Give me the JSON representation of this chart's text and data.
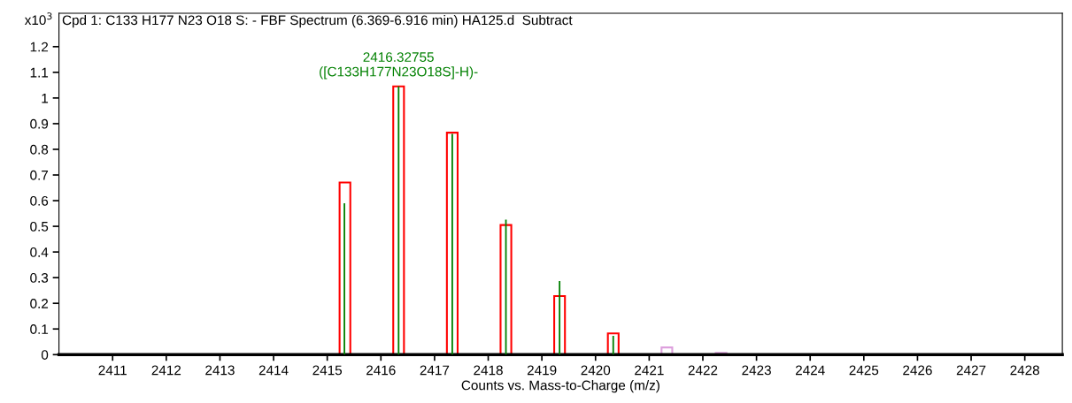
{
  "chart_data": {
    "type": "bar",
    "title": "Cpd 1: C133 H177 N23 O18 S: - FBF Spectrum (6.369-6.916 min) HA125.d  Subtract",
    "xlabel": "Counts vs. Mass-to-Charge (m/z)",
    "ylabel": "x10$^{3}$",
    "xlim": [
      2410,
      2428.7
    ],
    "xticks": [
      2411,
      2412,
      2413,
      2414,
      2415,
      2416,
      2417,
      2418,
      2419,
      2420,
      2421,
      2422,
      2423,
      2424,
      2425,
      2426,
      2427,
      2428
    ],
    "ylim": [
      0,
      1.33
    ],
    "yticks": [
      0,
      0.1,
      0.2,
      0.3,
      0.4,
      0.5,
      0.6,
      0.7,
      0.8,
      0.9,
      1,
      1.1,
      1.2
    ],
    "series": [
      {
        "colors": [
          "#ff0000",
          "#ff0000",
          "#ff0000",
          "#ff0000",
          "#ff0000",
          "#ff0000",
          "#dda0dd",
          "#dda0dd"
        ],
        "x": [
          2415.33,
          2416.33,
          2417.33,
          2418.33,
          2419.33,
          2420.33,
          2421.33,
          2422.34
        ],
        "values": [
          0.671,
          1.045,
          0.865,
          0.505,
          0.228,
          0.083,
          0.028,
          0.007
        ]
      },
      {
        "color": "#008000",
        "x": [
          2415.32,
          2416.33,
          2417.33,
          2418.33,
          2419.33,
          2420.33
        ],
        "values": [
          0.59,
          1.045,
          0.86,
          0.526,
          0.287,
          0.073
        ]
      }
    ],
    "annotations": [
      {
        "text": "2416.32755\n([C133H177N23O18S]-H)-",
        "x": 2416.32755,
        "y": 1.045
      }
    ],
    "grid": false,
    "legend": false
  }
}
